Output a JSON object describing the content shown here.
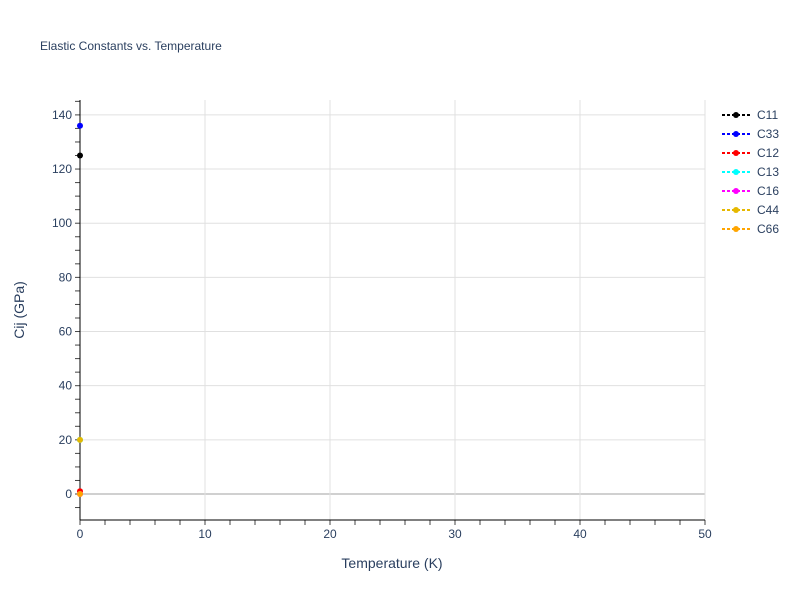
{
  "chart_data": {
    "type": "scatter",
    "title": "Elastic Constants vs. Temperature",
    "xlabel": "Temperature (K)",
    "ylabel": "Cij (GPa)",
    "xlim": [
      0,
      50
    ],
    "ylim": [
      -9.6,
      145.5
    ],
    "xticks": [
      0,
      10,
      20,
      30,
      40,
      50
    ],
    "yticks": [
      0,
      20,
      40,
      60,
      80,
      100,
      120,
      140
    ],
    "grid": true,
    "legend": "right",
    "series": [
      {
        "name": "C11",
        "color": "#000000",
        "x": [
          0
        ],
        "y": [
          125
        ]
      },
      {
        "name": "C33",
        "color": "#0000ff",
        "x": [
          0
        ],
        "y": [
          136
        ]
      },
      {
        "name": "C12",
        "color": "#ff0000",
        "x": [
          0
        ],
        "y": [
          1
        ]
      },
      {
        "name": "C13",
        "color": "#00ffff",
        "x": [
          0
        ],
        "y": [
          20
        ]
      },
      {
        "name": "C16",
        "color": "#ff00ff",
        "x": [
          0
        ],
        "y": [
          0
        ]
      },
      {
        "name": "C44",
        "color": "#e6b800",
        "x": [
          0
        ],
        "y": [
          20
        ]
      },
      {
        "name": "C66",
        "color": "#ffa500",
        "x": [
          0
        ],
        "y": [
          0
        ]
      }
    ]
  }
}
